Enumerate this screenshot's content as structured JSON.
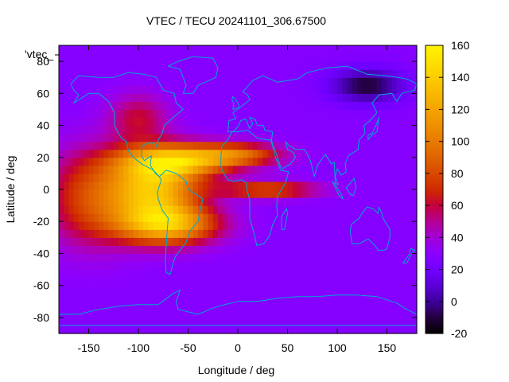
{
  "chart_data": {
    "type": "heatmap",
    "title": "VTEC / TECU 20241101_306.67500",
    "xlabel": "Longitude / deg",
    "ylabel": "Latitude / deg",
    "legend_label": "'vtec_",
    "xlim": [
      -180,
      180
    ],
    "ylim": [
      -90,
      90
    ],
    "x_ticks": [
      -150,
      -100,
      -50,
      0,
      50,
      100,
      150
    ],
    "y_ticks": [
      -80,
      -60,
      -40,
      -20,
      0,
      20,
      40,
      60,
      80
    ],
    "cbar_range": [
      -20,
      160
    ],
    "cbar_ticks": [
      -20,
      0,
      20,
      40,
      60,
      80,
      100,
      120,
      140,
      160
    ],
    "background_value": 28,
    "features": [
      {
        "name": "South American equatorial crest",
        "lon": -85,
        "lat": 0,
        "peak": 130,
        "lon_spread": 45,
        "lat_spread": 22
      },
      {
        "name": "Northern equatorial arc",
        "lon": -60,
        "lat": 18,
        "peak": 115,
        "lon_spread": 55,
        "lat_spread": 10
      },
      {
        "name": "Southern equatorial arc",
        "lon": -70,
        "lat": -22,
        "peak": 115,
        "lon_spread": 50,
        "lat_spread": 12
      },
      {
        "name": "Eastern Pacific enhancement",
        "lon": -150,
        "lat": -5,
        "peak": 75,
        "lon_spread": 45,
        "lat_spread": 30
      },
      {
        "name": "North Atlantic / Africa tongue",
        "lon": 0,
        "lat": 22,
        "peak": 85,
        "lon_spread": 45,
        "lat_spread": 7
      },
      {
        "name": "Equatorial Atlantic tongue",
        "lon": 30,
        "lat": 0,
        "peak": 85,
        "lon_spread": 50,
        "lat_spread": 5
      },
      {
        "name": "North America mid-latitudes",
        "lon": -100,
        "lat": 45,
        "peak": 60,
        "lon_spread": 30,
        "lat_spread": 15
      },
      {
        "name": "Siberian depletion",
        "lon": 130,
        "lat": 65,
        "peak": -12,
        "lon_spread": 35,
        "lat_spread": 10
      }
    ],
    "colormap": [
      [
        -20,
        "#000000"
      ],
      [
        -10,
        "#23003d"
      ],
      [
        0,
        "#3d0099"
      ],
      [
        10,
        "#5c00d9"
      ],
      [
        20,
        "#7000ff"
      ],
      [
        30,
        "#8a00ff"
      ],
      [
        40,
        "#a200d9"
      ],
      [
        50,
        "#b60096"
      ],
      [
        60,
        "#c4003c"
      ],
      [
        70,
        "#cf2a00"
      ],
      [
        80,
        "#d84800"
      ],
      [
        90,
        "#e06300"
      ],
      [
        100,
        "#e77a00"
      ],
      [
        110,
        "#ee8f00"
      ],
      [
        120,
        "#f3a300"
      ],
      [
        130,
        "#f8b800"
      ],
      [
        140,
        "#fbcc00"
      ],
      [
        150,
        "#fee000"
      ],
      [
        160,
        "#fff200"
      ]
    ],
    "coastline_color": "#00a7d1"
  }
}
